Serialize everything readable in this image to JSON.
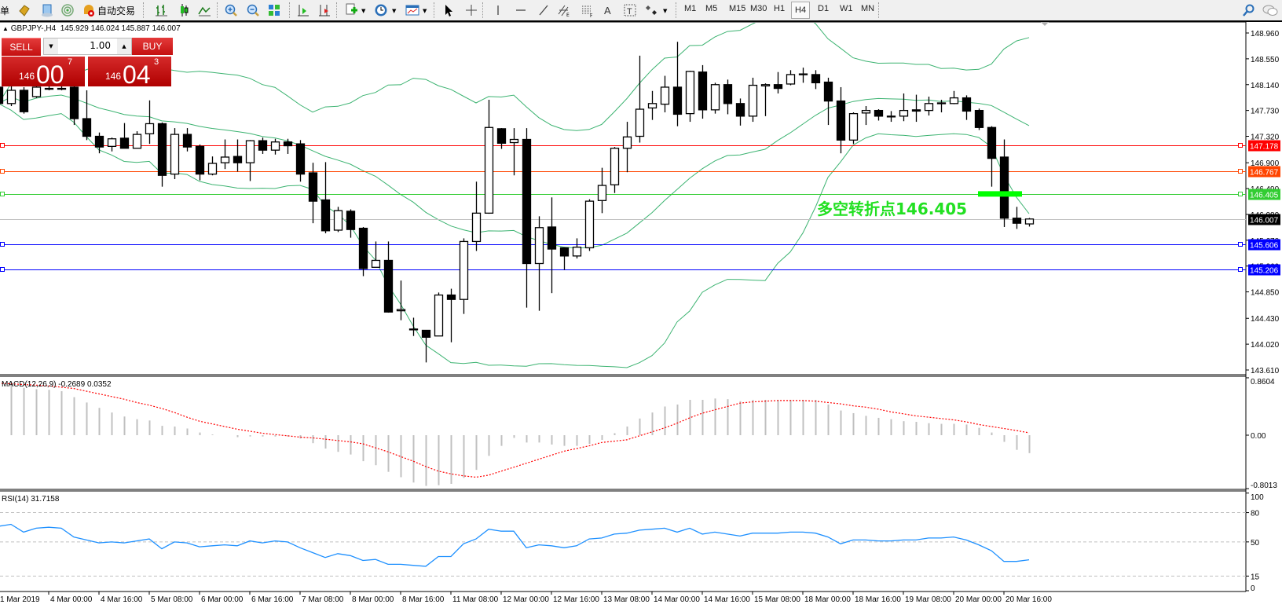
{
  "toolbar": {
    "menu_char": "单",
    "auto_trading_label": "自动交易",
    "icons": [
      "experts-icon",
      "navigator-icon",
      "signals-icon",
      "auto-trading-icon",
      "bar-chart-icon",
      "candlestick-icon",
      "line-chart-icon",
      "zoom-in-icon",
      "zoom-out-icon",
      "tile-windows-icon",
      "chart-shift-icon",
      "auto-scroll-icon",
      "indicators-icon",
      "periods-icon",
      "templates-icon",
      "cursor-icon",
      "crosshair-icon",
      "vertical-line-icon",
      "horizontal-line-icon",
      "trendline-icon",
      "equidistant-channel-icon",
      "fibonacci-icon",
      "text-icon",
      "text-label-icon",
      "arrows-icon"
    ],
    "timeframes": [
      "M1",
      "M5",
      "M15",
      "M30",
      "H1",
      "H4",
      "D1",
      "W1",
      "MN"
    ],
    "active_timeframe": "H4",
    "right_icons": [
      "search-icon",
      "chat-icon"
    ]
  },
  "chart_header": {
    "arrow": "▲",
    "symbol": "GBPJPY-,H4",
    "ohlc": "145.929 146.024 145.887 146.007"
  },
  "trade_panel": {
    "sell_label": "SELL",
    "buy_label": "BUY",
    "lot": "1.00",
    "bid": {
      "small": "146",
      "big": "00",
      "pip": "7"
    },
    "ask": {
      "small": "146",
      "big": "04",
      "pip": "3"
    }
  },
  "annotation": {
    "text": "多空转折点146.405",
    "color": "#22e022"
  },
  "colors": {
    "bollinger": "#3cb371",
    "macd_hist": "#c0c0c0",
    "macd_signal": "#ff0000",
    "rsi": "#1e90ff",
    "bull_body": "#ffffff",
    "bear_body": "#000000"
  },
  "chart_data": {
    "type": "candlestick",
    "symbol": "GBPJPY",
    "timeframe": "H4",
    "price_axis": {
      "ylim": [
        143.61,
        148.96
      ],
      "ticks": [
        "148.960",
        "148.550",
        "148.140",
        "147.730",
        "147.320",
        "146.900",
        "146.490",
        "146.080",
        "145.670",
        "145.260",
        "144.850",
        "144.430",
        "144.020",
        "143.610"
      ]
    },
    "x_labels": [
      "1 Mar 2019",
      "4 Mar 00:00",
      "4 Mar 16:00",
      "5 Mar 08:00",
      "6 Mar 00:00",
      "6 Mar 16:00",
      "7 Mar 08:00",
      "8 Mar 00:00",
      "8 Mar 16:00",
      "11 Mar 08:00",
      "12 Mar 00:00",
      "12 Mar 16:00",
      "13 Mar 08:00",
      "14 Mar 00:00",
      "14 Mar 16:00",
      "15 Mar 08:00",
      "18 Mar 00:00",
      "18 Mar 16:00",
      "19 Mar 08:00",
      "20 Mar 00:00",
      "20 Mar 16:00"
    ],
    "ohlc": [
      [
        148.1,
        148.2,
        147.8,
        147.84
      ],
      [
        147.84,
        148.15,
        147.8,
        148.05
      ],
      [
        148.05,
        148.1,
        147.68,
        147.71
      ],
      [
        147.95,
        148.15,
        147.93,
        148.1
      ],
      [
        148.07,
        148.12,
        148.05,
        148.08
      ],
      [
        148.08,
        148.12,
        148.05,
        148.07
      ],
      [
        148.1,
        148.12,
        147.5,
        147.6
      ],
      [
        147.6,
        148.05,
        147.26,
        147.32
      ],
      [
        147.32,
        147.38,
        147.05,
        147.15
      ],
      [
        147.16,
        147.3,
        147.08,
        147.28
      ],
      [
        147.29,
        147.53,
        147.13,
        147.13
      ],
      [
        147.13,
        147.4,
        147.13,
        147.35
      ],
      [
        147.36,
        147.89,
        147.2,
        147.52
      ],
      [
        147.52,
        147.54,
        146.52,
        146.7
      ],
      [
        146.72,
        147.45,
        146.64,
        147.35
      ],
      [
        147.35,
        147.45,
        147.08,
        147.15
      ],
      [
        147.16,
        147.19,
        146.62,
        146.72
      ],
      [
        146.72,
        147.0,
        146.7,
        146.89
      ],
      [
        146.9,
        147.27,
        146.8,
        146.99
      ],
      [
        147.0,
        147.27,
        146.76,
        146.9
      ],
      [
        146.9,
        147.26,
        146.61,
        147.25
      ],
      [
        147.25,
        147.3,
        147.04,
        147.1
      ],
      [
        147.1,
        147.28,
        147.03,
        147.23
      ],
      [
        147.23,
        147.28,
        147.04,
        147.17
      ],
      [
        147.2,
        147.26,
        146.6,
        146.72
      ],
      [
        146.74,
        146.9,
        145.94,
        146.29
      ],
      [
        146.31,
        146.91,
        145.78,
        145.82
      ],
      [
        145.83,
        146.2,
        145.8,
        146.14
      ],
      [
        146.13,
        146.16,
        145.71,
        145.84
      ],
      [
        145.86,
        145.88,
        145.1,
        145.22
      ],
      [
        145.24,
        145.65,
        145.24,
        145.35
      ],
      [
        145.35,
        145.65,
        144.52,
        144.53
      ],
      [
        144.55,
        145.03,
        144.4,
        144.57
      ],
      [
        144.25,
        144.44,
        144.15,
        144.26
      ],
      [
        144.24,
        144.24,
        143.73,
        144.13
      ],
      [
        144.15,
        144.84,
        144.15,
        144.8
      ],
      [
        144.8,
        144.9,
        144.05,
        144.73
      ],
      [
        144.73,
        145.7,
        144.5,
        145.65
      ],
      [
        145.65,
        146.6,
        145.5,
        146.1
      ],
      [
        146.1,
        147.9,
        146.09,
        147.46
      ],
      [
        147.44,
        147.45,
        147.12,
        147.21
      ],
      [
        147.22,
        147.45,
        146.7,
        147.27
      ],
      [
        147.27,
        147.45,
        144.6,
        145.3
      ],
      [
        145.3,
        146.05,
        144.55,
        145.87
      ],
      [
        145.88,
        146.35,
        144.83,
        145.53
      ],
      [
        145.55,
        145.56,
        145.2,
        145.42
      ],
      [
        145.42,
        145.7,
        145.38,
        145.56
      ],
      [
        145.55,
        146.32,
        145.5,
        146.29
      ],
      [
        146.3,
        146.82,
        146.1,
        146.54
      ],
      [
        146.55,
        147.15,
        146.42,
        147.13
      ],
      [
        147.13,
        147.55,
        146.75,
        147.31
      ],
      [
        147.32,
        148.6,
        147.22,
        147.75
      ],
      [
        147.77,
        148.04,
        147.58,
        147.84
      ],
      [
        147.83,
        148.28,
        147.7,
        148.1
      ],
      [
        148.1,
        148.82,
        147.48,
        147.67
      ],
      [
        147.68,
        148.36,
        147.55,
        148.35
      ],
      [
        148.34,
        148.45,
        147.6,
        147.74
      ],
      [
        147.74,
        148.17,
        147.68,
        148.14
      ],
      [
        148.14,
        148.22,
        147.67,
        147.84
      ],
      [
        147.84,
        147.92,
        147.49,
        147.64
      ],
      [
        147.64,
        148.25,
        147.55,
        148.13
      ],
      [
        148.12,
        148.16,
        147.64,
        148.14
      ],
      [
        148.14,
        148.34,
        148.0,
        148.08
      ],
      [
        148.15,
        148.37,
        148.13,
        148.3
      ],
      [
        148.3,
        148.41,
        148.17,
        148.31
      ],
      [
        148.3,
        148.37,
        148.07,
        148.17
      ],
      [
        148.18,
        148.25,
        147.5,
        147.88
      ],
      [
        147.88,
        148.1,
        147.05,
        147.26
      ],
      [
        147.26,
        147.7,
        147.2,
        147.68
      ],
      [
        147.69,
        147.8,
        147.5,
        147.73
      ],
      [
        147.73,
        147.75,
        147.57,
        147.64
      ],
      [
        147.64,
        147.72,
        147.55,
        147.64
      ],
      [
        147.64,
        148.0,
        147.56,
        147.73
      ],
      [
        147.74,
        147.98,
        147.55,
        147.72
      ],
      [
        147.73,
        147.95,
        147.65,
        147.84
      ],
      [
        147.85,
        147.9,
        147.7,
        147.84
      ],
      [
        147.84,
        148.04,
        147.83,
        147.93
      ],
      [
        147.93,
        147.97,
        147.58,
        147.72
      ],
      [
        147.73,
        147.76,
        147.42,
        147.46
      ],
      [
        147.46,
        147.48,
        146.52,
        146.97
      ],
      [
        146.99,
        147.27,
        145.88,
        146.02
      ],
      [
        146.02,
        146.2,
        145.85,
        145.94
      ],
      [
        145.929,
        146.024,
        145.887,
        146.007
      ]
    ],
    "bollinger": {
      "period": 20,
      "deviation": 2
    },
    "levels": [
      {
        "price": "147.178",
        "color": "#ff0000"
      },
      {
        "price": "146.767",
        "color": "#ff4500"
      },
      {
        "price": "146.405",
        "color": "#32cd32"
      },
      {
        "price": "146.007",
        "color": "#000000",
        "line_color": "#c0c0c0"
      },
      {
        "price": "145.606",
        "color": "#0000ff"
      },
      {
        "price": "145.206",
        "color": "#0000ff"
      }
    ],
    "pivot_marker_price": 146.405,
    "macd": {
      "label": "MACD(12,26,9) -0.2689 0.0352",
      "ylim": [
        -0.8013,
        0.8604
      ],
      "ticks": [
        "0.8604",
        "0.00",
        "-0.8013"
      ],
      "histogram": [
        0.8,
        0.78,
        0.71,
        0.69,
        0.68,
        0.66,
        0.57,
        0.49,
        0.41,
        0.34,
        0.28,
        0.24,
        0.22,
        0.14,
        0.13,
        0.1,
        0.04,
        0.01,
        0,
        -0.03,
        -0.02,
        -0.02,
        -0.02,
        -0.02,
        -0.05,
        -0.12,
        -0.2,
        -0.25,
        -0.29,
        -0.39,
        -0.45,
        -0.55,
        -0.63,
        -0.71,
        -0.76,
        -0.75,
        -0.73,
        -0.64,
        -0.52,
        -0.31,
        -0.16,
        -0.04,
        -0.11,
        -0.11,
        -0.14,
        -0.16,
        -0.16,
        -0.13,
        -0.07,
        0.03,
        0.13,
        0.25,
        0.34,
        0.43,
        0.46,
        0.53,
        0.53,
        0.55,
        0.54,
        0.51,
        0.53,
        0.53,
        0.53,
        0.53,
        0.53,
        0.53,
        0.46,
        0.37,
        0.33,
        0.29,
        0.26,
        0.24,
        0.21,
        0.2,
        0.18,
        0.17,
        0.17,
        0.16,
        0.11,
        0.04,
        -0.1,
        -0.22,
        -0.2689
      ],
      "signal": [
        0.78,
        0.77,
        0.76,
        0.75,
        0.74,
        0.72,
        0.7,
        0.66,
        0.62,
        0.58,
        0.54,
        0.49,
        0.45,
        0.4,
        0.34,
        0.27,
        0.21,
        0.17,
        0.13,
        0.09,
        0.06,
        0.03,
        0.01,
        -0.01,
        -0.03,
        -0.04,
        -0.06,
        -0.08,
        -0.1,
        -0.13,
        -0.19,
        -0.25,
        -0.32,
        -0.39,
        -0.47,
        -0.54,
        -0.58,
        -0.61,
        -0.63,
        -0.6,
        -0.54,
        -0.48,
        -0.42,
        -0.36,
        -0.3,
        -0.24,
        -0.2,
        -0.16,
        -0.11,
        -0.09,
        -0.07,
        -0.01,
        0.05,
        0.11,
        0.18,
        0.26,
        0.33,
        0.38,
        0.43,
        0.48,
        0.5,
        0.51,
        0.52,
        0.52,
        0.52,
        0.51,
        0.49,
        0.47,
        0.44,
        0.42,
        0.39,
        0.35,
        0.32,
        0.29,
        0.27,
        0.25,
        0.23,
        0.2,
        0.16,
        0.13,
        0.1,
        0.07,
        0.0352
      ]
    },
    "rsi": {
      "label": "RSI(14) 31.7158",
      "ylim": [
        0,
        100
      ],
      "ticks": [
        "100",
        "80",
        "50",
        "15",
        "0"
      ],
      "levels": [
        80,
        50,
        15
      ],
      "values": [
        66,
        68,
        60,
        64,
        65,
        64,
        55,
        52,
        49,
        50,
        49,
        51,
        53,
        43,
        50,
        49,
        45,
        46,
        47,
        46,
        51,
        49,
        51,
        50,
        44,
        39,
        34,
        38,
        36,
        31,
        32,
        27,
        27,
        26,
        25,
        35,
        35,
        48,
        53,
        63,
        61,
        61,
        44,
        47,
        46,
        44,
        46,
        53,
        54,
        58,
        59,
        62,
        63,
        64,
        60,
        64,
        58,
        60,
        58,
        56,
        59,
        59,
        59,
        60,
        60,
        59,
        55,
        48,
        52,
        52,
        51,
        51,
        52,
        52,
        54,
        54,
        55,
        52,
        47,
        41,
        30,
        30,
        31.7158
      ]
    }
  }
}
